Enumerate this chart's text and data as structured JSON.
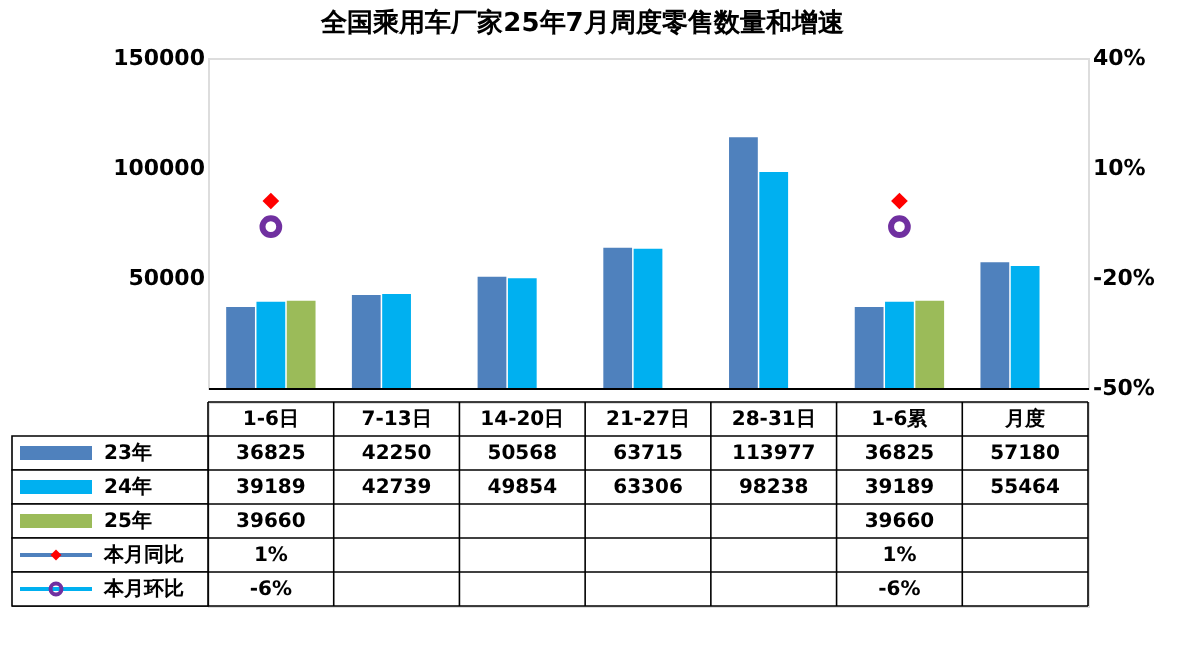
{
  "chart_data": {
    "type": "bar",
    "title": "全国乘用车厂家25年7月周度零售数量和增速",
    "categories": [
      "1-6日",
      "7-13日",
      "14-20日",
      "21-27日",
      "28-31日",
      "1-6累",
      "月度"
    ],
    "series": [
      {
        "name": "23年",
        "color": "#4f81bd",
        "values": [
          36825,
          42250,
          50568,
          63715,
          113977,
          36825,
          57180
        ]
      },
      {
        "name": "24年",
        "color": "#00b0f0",
        "values": [
          39189,
          42739,
          49854,
          63306,
          98238,
          39189,
          55464
        ]
      },
      {
        "name": "25年",
        "color": "#9bbb59",
        "values": [
          39660,
          null,
          null,
          null,
          null,
          39660,
          null
        ]
      },
      {
        "name": "本月同比",
        "type": "scatter",
        "axis": "y2",
        "marker": "diamond",
        "color": "#ff0000",
        "values": [
          1,
          null,
          null,
          null,
          null,
          1,
          null
        ],
        "value_labels": [
          "1%",
          null,
          null,
          null,
          null,
          "1%",
          null
        ]
      },
      {
        "name": "本月环比",
        "type": "scatter",
        "axis": "y2",
        "marker": "circle",
        "color": "#7030a0",
        "values": [
          -6,
          null,
          null,
          null,
          null,
          -6,
          null
        ],
        "value_labels": [
          "-6%",
          null,
          null,
          null,
          null,
          "-6%",
          null
        ]
      }
    ],
    "ylim": [
      0,
      150000
    ],
    "yticks": [
      50000,
      100000,
      150000
    ],
    "y2lim": [
      -50,
      40
    ],
    "y2ticks": [
      {
        "value": -50,
        "label": "-50%"
      },
      {
        "value": -20,
        "label": "-20%"
      },
      {
        "value": 10,
        "label": "10%"
      },
      {
        "value": 40,
        "label": "40%"
      }
    ],
    "data_labels": true,
    "legend": "bottom left",
    "grid": false
  }
}
